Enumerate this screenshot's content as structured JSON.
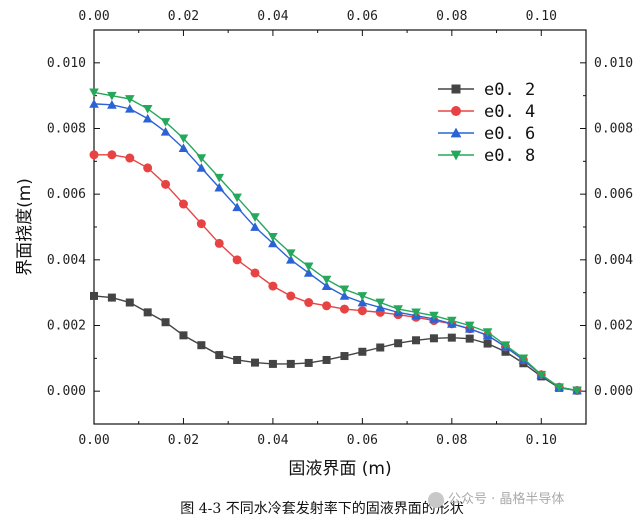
{
  "chart_data": {
    "type": "scatter",
    "xlabel": "固液界面 (m)",
    "ylabel": "界面挠度(m)",
    "xlim": [
      0.0,
      0.11
    ],
    "ylim": [
      -0.001,
      0.011
    ],
    "x_ticks": [
      "0.00",
      "0.02",
      "0.04",
      "0.06",
      "0.08",
      "0.10"
    ],
    "y_ticks": [
      "0.000",
      "0.002",
      "0.004",
      "0.006",
      "0.008",
      "0.010"
    ],
    "legend_position": "top-right",
    "series": [
      {
        "name": "e0.2",
        "label": "e0. 2",
        "color": "#444444",
        "marker": "square",
        "x": [
          0.0,
          0.004,
          0.008,
          0.012,
          0.016,
          0.02,
          0.024,
          0.028,
          0.032,
          0.036,
          0.04,
          0.044,
          0.048,
          0.052,
          0.056,
          0.06,
          0.064,
          0.068,
          0.072,
          0.076,
          0.08,
          0.084,
          0.088,
          0.092,
          0.096,
          0.1,
          0.104,
          0.108
        ],
        "y": [
          0.0029,
          0.00285,
          0.0027,
          0.0024,
          0.0021,
          0.0017,
          0.0014,
          0.0011,
          0.00095,
          0.00087,
          0.00083,
          0.00083,
          0.00086,
          0.00095,
          0.00107,
          0.0012,
          0.00133,
          0.00146,
          0.00155,
          0.00161,
          0.00163,
          0.0016,
          0.00145,
          0.0012,
          0.00085,
          0.00045,
          0.0001,
          2e-05
        ]
      },
      {
        "name": "e0.4",
        "label": "e0. 4",
        "color": "#e84343",
        "marker": "circle",
        "x": [
          0.0,
          0.004,
          0.008,
          0.012,
          0.016,
          0.02,
          0.024,
          0.028,
          0.032,
          0.036,
          0.04,
          0.044,
          0.048,
          0.052,
          0.056,
          0.06,
          0.064,
          0.068,
          0.072,
          0.076,
          0.08,
          0.084,
          0.088,
          0.092,
          0.096,
          0.1,
          0.104,
          0.108
        ],
        "y": [
          0.0072,
          0.0072,
          0.0071,
          0.0068,
          0.0063,
          0.0057,
          0.0051,
          0.0045,
          0.004,
          0.0036,
          0.0032,
          0.0029,
          0.0027,
          0.0026,
          0.0025,
          0.00245,
          0.0024,
          0.00233,
          0.00225,
          0.00215,
          0.00205,
          0.0019,
          0.0017,
          0.00135,
          0.00095,
          0.0005,
          0.00012,
          2e-05
        ]
      },
      {
        "name": "e0.6",
        "label": "e0. 6",
        "color": "#2a63d6",
        "marker": "triangle-up",
        "x": [
          0.0,
          0.004,
          0.008,
          0.012,
          0.016,
          0.02,
          0.024,
          0.028,
          0.032,
          0.036,
          0.04,
          0.044,
          0.048,
          0.052,
          0.056,
          0.06,
          0.064,
          0.068,
          0.072,
          0.076,
          0.08,
          0.084,
          0.088,
          0.092,
          0.096,
          0.1,
          0.104,
          0.108
        ],
        "y": [
          0.00875,
          0.00872,
          0.0086,
          0.0083,
          0.0079,
          0.0074,
          0.0068,
          0.0062,
          0.0056,
          0.005,
          0.0045,
          0.004,
          0.0036,
          0.0032,
          0.0029,
          0.0027,
          0.00255,
          0.0024,
          0.0023,
          0.0022,
          0.00205,
          0.0019,
          0.0017,
          0.00135,
          0.00095,
          0.0005,
          0.00012,
          2e-05
        ]
      },
      {
        "name": "e0.8",
        "label": "e0. 8",
        "color": "#25a85c",
        "marker": "triangle-down",
        "x": [
          0.0,
          0.004,
          0.008,
          0.012,
          0.016,
          0.02,
          0.024,
          0.028,
          0.032,
          0.036,
          0.04,
          0.044,
          0.048,
          0.052,
          0.056,
          0.06,
          0.064,
          0.068,
          0.072,
          0.076,
          0.08,
          0.084,
          0.088,
          0.092,
          0.096,
          0.1,
          0.104,
          0.108
        ],
        "y": [
          0.0091,
          0.009,
          0.0089,
          0.0086,
          0.0082,
          0.0077,
          0.0071,
          0.0065,
          0.0059,
          0.0053,
          0.0047,
          0.0042,
          0.0038,
          0.0034,
          0.0031,
          0.0029,
          0.0027,
          0.0025,
          0.0024,
          0.0023,
          0.00215,
          0.002,
          0.0018,
          0.0014,
          0.001,
          0.0005,
          0.00012,
          2e-05
        ]
      }
    ]
  },
  "caption": "图 4-3   不同水冷套发射率下的固液界面的形状",
  "watermark": "公众号 · 晶格半导体"
}
